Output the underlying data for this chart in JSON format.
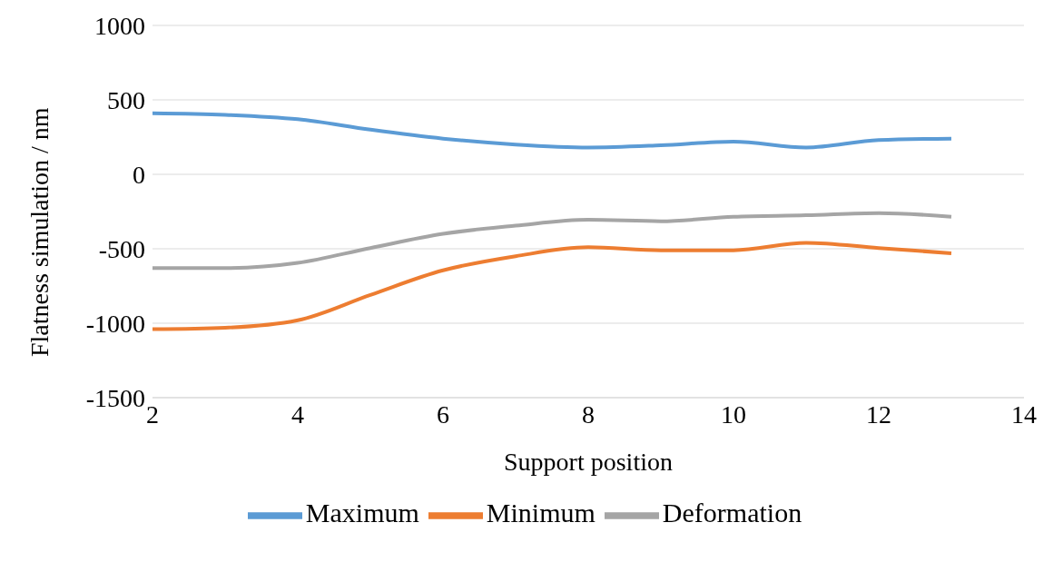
{
  "chart_data": {
    "type": "line",
    "xlabel": "Support position",
    "ylabel": "Flatness simulation / nm",
    "x": [
      2,
      3,
      4,
      5,
      6,
      7,
      8,
      9,
      10,
      11,
      12,
      13
    ],
    "series": [
      {
        "name": "Maximum",
        "color": "#5b9bd5",
        "values": [
          410,
          400,
          370,
          300,
          240,
          200,
          180,
          195,
          220,
          180,
          230,
          240
        ]
      },
      {
        "name": "Minimum",
        "color": "#ed7d31",
        "values": [
          -1040,
          -1030,
          -980,
          -810,
          -645,
          -550,
          -490,
          -510,
          -510,
          -460,
          -495,
          -530
        ]
      },
      {
        "name": "Deformation",
        "color": "#a5a5a5",
        "values": [
          -630,
          -630,
          -595,
          -495,
          -400,
          -345,
          -305,
          -315,
          -285,
          -275,
          -260,
          -285
        ]
      }
    ],
    "xlim": [
      2,
      14
    ],
    "xticks": [
      2,
      4,
      6,
      8,
      10,
      12,
      14
    ],
    "ylim": [
      -1500,
      1000
    ],
    "yticks": [
      -1500,
      -1000,
      -500,
      0,
      500,
      1000
    ],
    "grid": "y",
    "legend": "bottom",
    "marker": "none",
    "line_style": "solid"
  }
}
